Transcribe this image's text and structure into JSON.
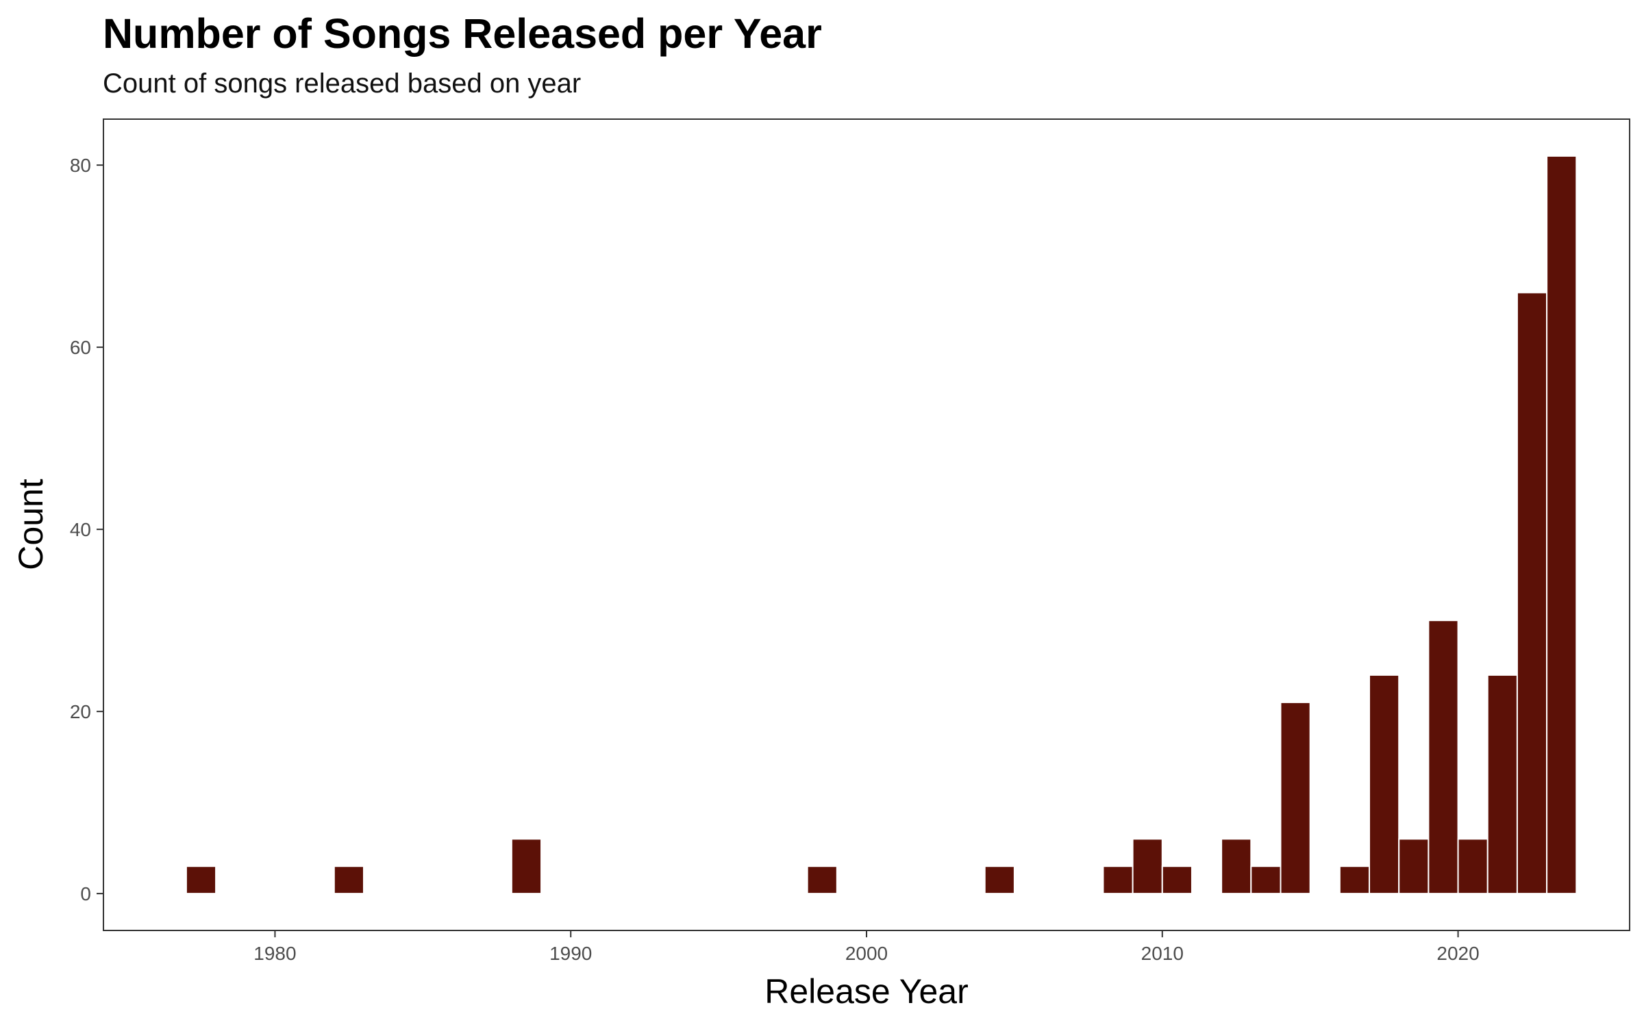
{
  "title": "Number of Songs Released per Year",
  "subtitle": "Count of songs released based on year",
  "chart_data": {
    "type": "bar",
    "xlabel": "Release Year",
    "ylabel": "Count",
    "xlim": [
      1974.2,
      2025.8
    ],
    "ylim": [
      -4.05,
      85.05
    ],
    "x_ticks": [
      1980,
      1990,
      2000,
      2010,
      2020
    ],
    "y_ticks": [
      0,
      20,
      40,
      60,
      80
    ],
    "grid": false,
    "bar_color": "#5C1107",
    "bin_width": 1,
    "x": [
      1977.5,
      1982.5,
      1988.5,
      1998.5,
      2004.5,
      2008.5,
      2009.5,
      2010.5,
      2012.5,
      2013.5,
      2014.5,
      2016.5,
      2017.5,
      2018.5,
      2019.5,
      2020.5,
      2021.5,
      2022.5,
      2023.5
    ],
    "values": [
      3,
      3,
      6,
      3,
      3,
      3,
      6,
      3,
      6,
      3,
      21,
      3,
      24,
      6,
      30,
      6,
      24,
      66,
      81
    ]
  }
}
